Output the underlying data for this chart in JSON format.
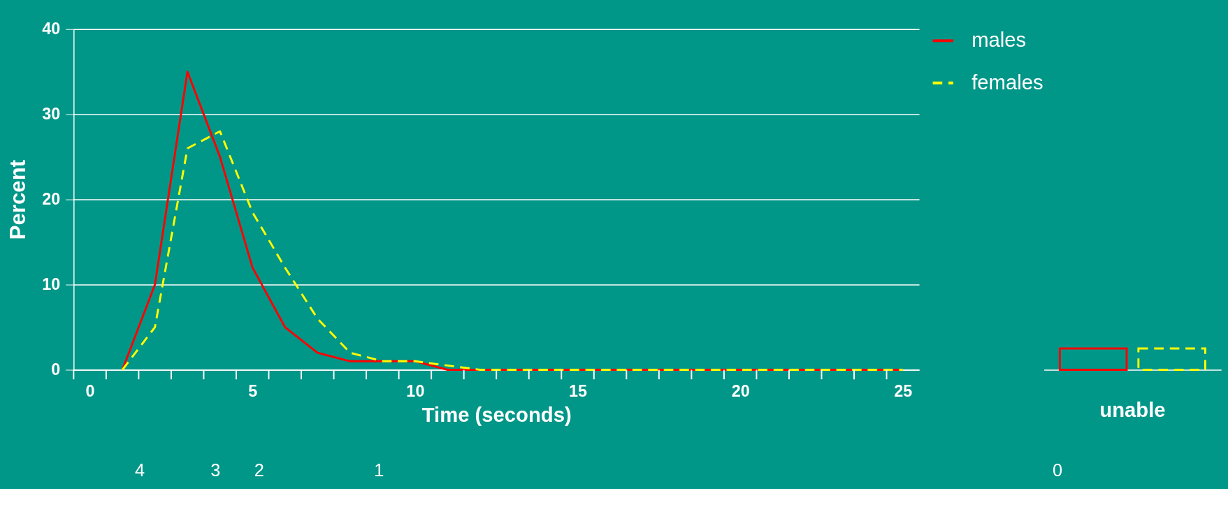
{
  "chart_data": [
    {
      "type": "line",
      "xlabel": "Time (seconds)",
      "ylabel": "Percent",
      "x": [
        1,
        2,
        3,
        4,
        5,
        6,
        7,
        8,
        9,
        10,
        11,
        12,
        13,
        14,
        15,
        16,
        17,
        18,
        19,
        20,
        21,
        22,
        23,
        24,
        25
      ],
      "series": [
        {
          "name": "males",
          "color": "#ff0000",
          "line_style": "solid",
          "values": [
            0,
            10,
            35,
            25,
            12,
            5,
            2,
            1,
            1,
            1,
            0,
            0,
            0,
            0,
            0,
            0,
            0,
            0,
            0,
            0,
            0,
            0,
            0,
            0,
            0
          ]
        },
        {
          "name": "females",
          "color": "#ffff00",
          "line_style": "dashed",
          "values": [
            0,
            5,
            26,
            28,
            18.5,
            12,
            6,
            2,
            1,
            1,
            0.5,
            0,
            0,
            0,
            0,
            0,
            0,
            0,
            0,
            0,
            0,
            0,
            0,
            0,
            0
          ]
        }
      ],
      "xlim": [
        -0.5,
        25.5
      ],
      "xticks": [
        0,
        5,
        10,
        15,
        20,
        25,
        {
          "value": -0.5,
          "label": null
        },
        {
          "value": 0.5,
          "label": null
        },
        {
          "value": 1.5,
          "label": null
        },
        {
          "value": 2.5,
          "label": null
        },
        {
          "value": 3.5,
          "label": null
        },
        {
          "value": 4.5,
          "label": null
        },
        {
          "value": 5.5,
          "label": null
        },
        {
          "value": 6.5,
          "label": null
        },
        {
          "value": 7.5,
          "label": null
        },
        {
          "value": 8.5,
          "label": null
        },
        {
          "value": 9.5,
          "label": null
        },
        {
          "value": 10.5,
          "label": null
        },
        {
          "value": 11.5,
          "label": null
        },
        {
          "value": 12.5,
          "label": null
        },
        {
          "value": 13.5,
          "label": null
        },
        {
          "value": 14.5,
          "label": null
        },
        {
          "value": 15.5,
          "label": null
        },
        {
          "value": 16.5,
          "label": null
        },
        {
          "value": 17.5,
          "label": null
        },
        {
          "value": 18.5,
          "label": null
        },
        {
          "value": 19.5,
          "label": null
        },
        {
          "value": 20.5,
          "label": null
        },
        {
          "value": 21.5,
          "label": null
        },
        {
          "value": 22.5,
          "label": null
        },
        {
          "value": 23.5,
          "label": null
        },
        {
          "value": 24.5,
          "label": null
        }
      ],
      "ylim": [
        0,
        40
      ],
      "yticks": [
        0,
        10,
        20,
        30,
        40
      ],
      "grid": "y",
      "legend": "top right",
      "annotations": [
        "4",
        "3",
        "2",
        "1"
      ]
    },
    {
      "type": "bar",
      "categories": [
        "unable"
      ],
      "series": [
        {
          "color": "#ff0000",
          "line_style": "solid",
          "values": [
            2.5
          ]
        },
        {
          "color": "#ffff00",
          "line_style": "dashed",
          "values": [
            2.5
          ]
        }
      ],
      "ylim": [
        0,
        40
      ],
      "tick_labels": "x",
      "annotations": [
        "0"
      ]
    }
  ]
}
